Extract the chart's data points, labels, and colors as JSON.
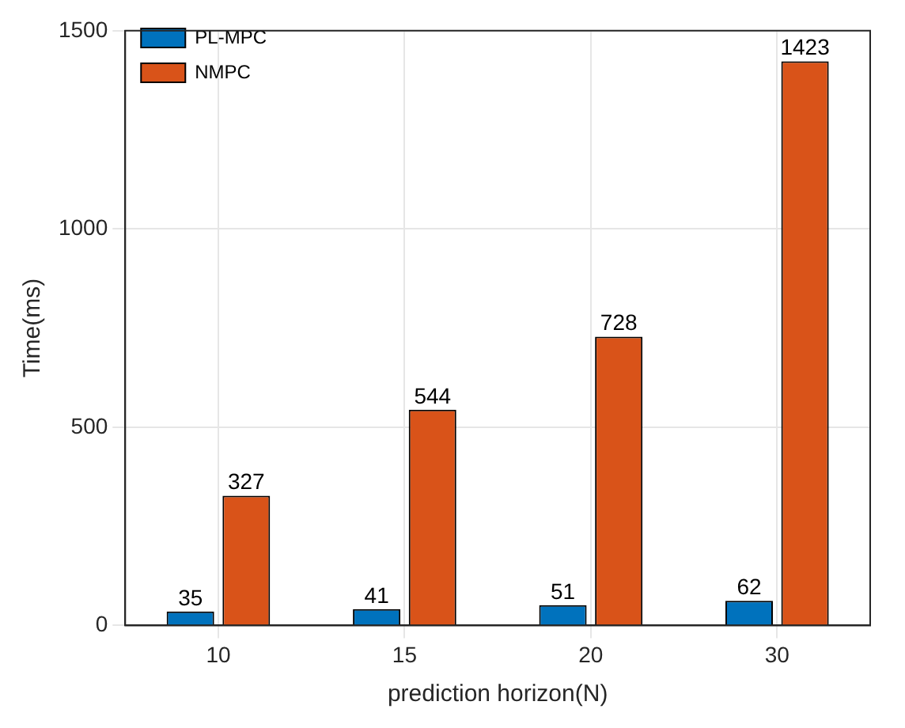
{
  "chart_data": {
    "type": "bar",
    "xlabel": "prediction horizon(N)",
    "ylabel": "Time(ms)",
    "categories": [
      "10",
      "15",
      "20",
      "30"
    ],
    "series": [
      {
        "name": "PL-MPC",
        "color": "#0072bd",
        "values": [
          35,
          41,
          51,
          62
        ]
      },
      {
        "name": "NMPC",
        "color": "#d95319",
        "values": [
          327,
          544,
          728,
          1423
        ]
      }
    ],
    "ylim": [
      0,
      1500
    ],
    "yticks": [
      0,
      500,
      1000,
      1500
    ],
    "grid": true,
    "legend": "top left",
    "data_labels": true
  }
}
